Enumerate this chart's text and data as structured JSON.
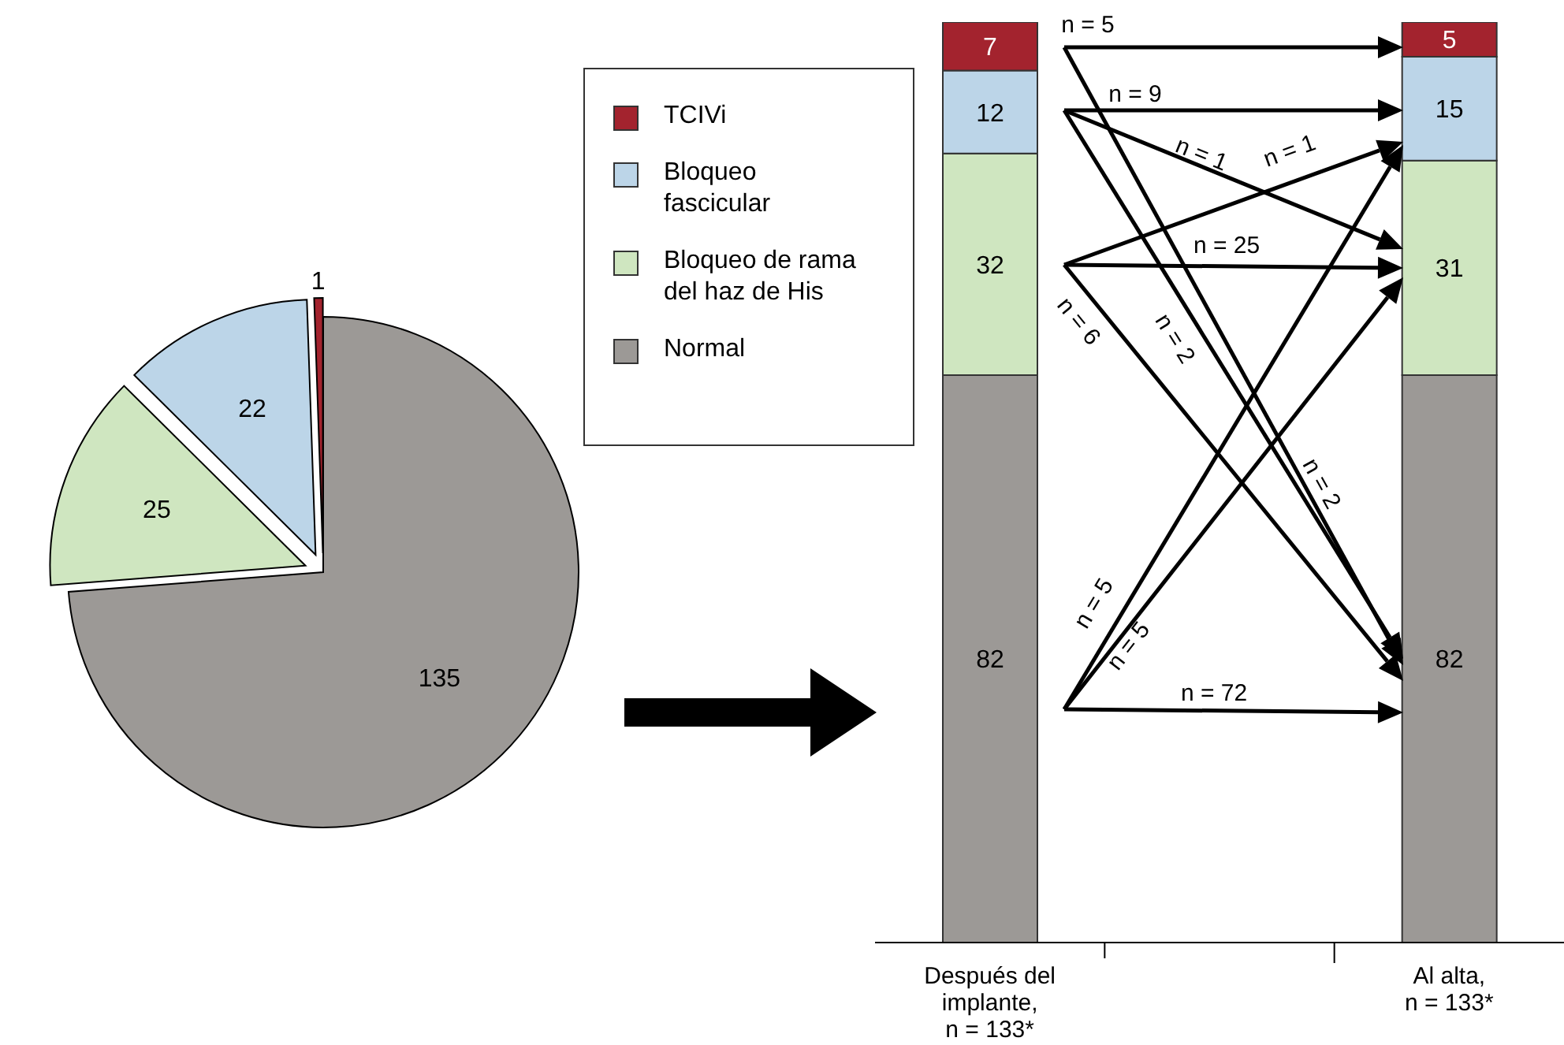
{
  "chart_data": [
    {
      "type": "pie",
      "categories": [
        "TCIVi",
        "Bloqueo fascicular",
        "Bloqueo de rama del haz de His",
        "Normal"
      ],
      "values": [
        1,
        22,
        25,
        135
      ],
      "colors": [
        "#a3232e",
        "#bcd5e8",
        "#cfe6c0",
        "#9c9996"
      ],
      "data_labels": true,
      "legend": "right"
    },
    {
      "type": "bar",
      "stacked": true,
      "categories": [
        "Después del implante, n = 133*",
        null,
        "Al alta, n = 133*"
      ],
      "ylim": [
        0,
        133
      ],
      "tick_labels": "x",
      "data_labels": true,
      "series": [
        {
          "color": "#9c9996",
          "values": [
            82,
            null,
            82
          ]
        },
        {
          "color": "#cfe6c0",
          "values": [
            32,
            null,
            31
          ]
        },
        {
          "color": "#bcd5e8",
          "values": [
            12,
            null,
            15
          ]
        },
        {
          "color": "#a3232e",
          "values": [
            7,
            null,
            5
          ]
        }
      ],
      "annotations": [
        "n = 5",
        "n = 9",
        "n = 1",
        "n = 1",
        "n = 25",
        "n = 6",
        "n = 2",
        "n = 2",
        "n = 5",
        "n = 5",
        "n = 72"
      ]
    }
  ]
}
